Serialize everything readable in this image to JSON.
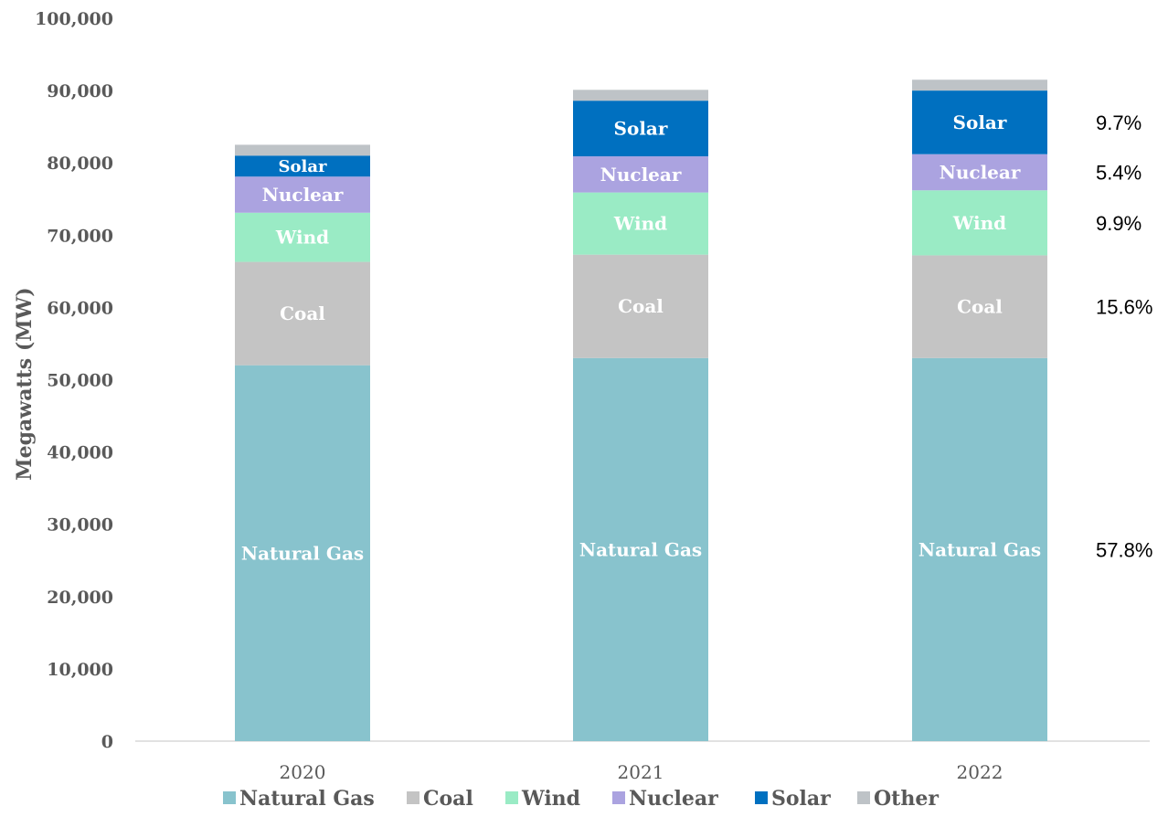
{
  "chart_data": {
    "type": "bar",
    "stacked": true,
    "title": "",
    "xlabel": "",
    "ylabel": "Megawatts (MW)",
    "ylim": [
      0,
      100000
    ],
    "yticks": [
      0,
      10000,
      20000,
      30000,
      40000,
      50000,
      60000,
      70000,
      80000,
      90000,
      100000
    ],
    "ytick_labels": [
      "0",
      "10,000",
      "20,000",
      "30,000",
      "40,000",
      "50,000",
      "60,000",
      "70,000",
      "80,000",
      "90,000",
      "100,000"
    ],
    "grid": false,
    "legend_position": "bottom",
    "categories": [
      "2020",
      "2021",
      "2022"
    ],
    "series": [
      {
        "name": "Natural Gas",
        "color": "#88C3CD",
        "values": [
          52000,
          53000,
          53000
        ],
        "labels": [
          "Natural Gas",
          "Natural Gas",
          "Natural Gas"
        ]
      },
      {
        "name": "Coal",
        "color": "#C4C4C4",
        "values": [
          14300,
          14300,
          14200
        ],
        "labels": [
          "Coal",
          "Coal",
          "Coal"
        ]
      },
      {
        "name": "Wind",
        "color": "#9AEBC5",
        "values": [
          6800,
          8600,
          9000
        ],
        "labels": [
          "Wind",
          "Wind",
          "Wind"
        ]
      },
      {
        "name": "Nuclear",
        "color": "#ABA3E0",
        "values": [
          5000,
          5000,
          5000
        ],
        "labels": [
          "Nuclear",
          "Nuclear",
          "Nuclear"
        ]
      },
      {
        "name": "Solar",
        "color": "#0070C0",
        "values": [
          2900,
          7700,
          8800
        ],
        "labels": [
          "Solar",
          "Solar",
          "Solar"
        ]
      },
      {
        "name": "Other",
        "color": "#BEC3C7",
        "values": [
          1500,
          1500,
          1500
        ],
        "labels": [
          "",
          "",
          ""
        ]
      }
    ],
    "annotations": [
      {
        "text": "9.7%",
        "series": "Solar"
      },
      {
        "text": "5.4%",
        "series": "Nuclear"
      },
      {
        "text": "9.9%",
        "series": "Wind"
      },
      {
        "text": "15.6%",
        "series": "Coal"
      },
      {
        "text": "57.8%",
        "series": "Natural Gas"
      }
    ]
  }
}
